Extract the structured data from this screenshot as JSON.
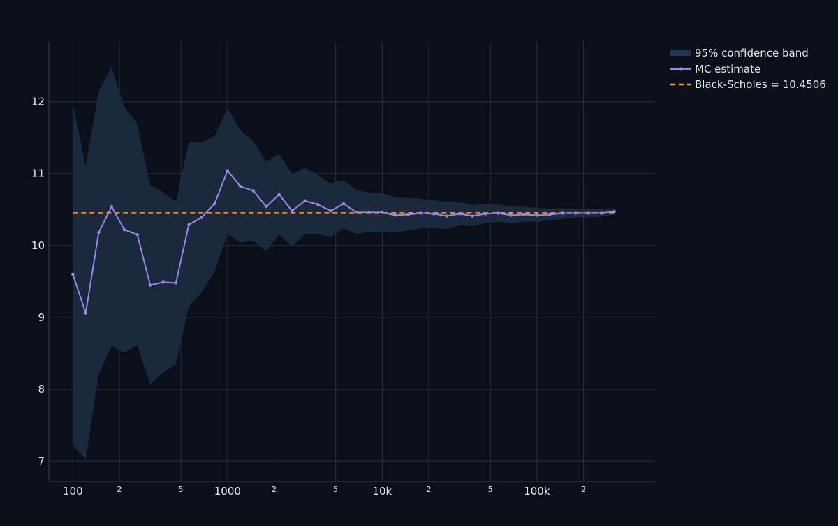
{
  "chart_data": {
    "type": "line",
    "title": "",
    "xlabel": "",
    "ylabel": "",
    "x_scale": "log",
    "xlim": [
      70,
      580000
    ],
    "ylim": [
      6.72,
      12.83
    ],
    "grid": true,
    "legend_position": "top-right",
    "colors": {
      "background": "#0b0f19",
      "grid": "#283042",
      "band": "#1c2b3e",
      "mc_line": "#9d86ea",
      "black_scholes": "#f0a04b",
      "tick_text": "#e6e6e6"
    },
    "x_ticks": [
      {
        "value": 100,
        "label": "100",
        "major": true
      },
      {
        "value": 200,
        "label": "2",
        "major": false
      },
      {
        "value": 500,
        "label": "5",
        "major": false
      },
      {
        "value": 1000,
        "label": "1000",
        "major": true
      },
      {
        "value": 2000,
        "label": "2",
        "major": false
      },
      {
        "value": 5000,
        "label": "5",
        "major": false
      },
      {
        "value": 10000,
        "label": "10k",
        "major": true
      },
      {
        "value": 20000,
        "label": "2",
        "major": false
      },
      {
        "value": 50000,
        "label": "5",
        "major": false
      },
      {
        "value": 100000,
        "label": "100k",
        "major": true
      },
      {
        "value": 200000,
        "label": "2",
        "major": false
      }
    ],
    "y_ticks": [
      7,
      8,
      9,
      10,
      11,
      12
    ],
    "x": [
      100,
      121,
      147,
      178,
      215,
      261,
      316,
      383,
      464,
      562,
      681,
      825,
      1000,
      1212,
      1468,
      1778,
      2154,
      2610,
      3162,
      3831,
      4642,
      5623,
      6813,
      8254,
      10000,
      12115,
      14678,
      17783,
      21544,
      26102,
      31623,
      38312,
      46416,
      56234,
      68129,
      82540,
      100000,
      121153,
      146780,
      177828,
      215443,
      261016,
      316228
    ],
    "series": [
      {
        "name": "MC estimate",
        "kind": "line+markers",
        "values": [
          9.6,
          9.06,
          10.18,
          10.54,
          10.22,
          10.15,
          9.45,
          9.49,
          9.48,
          10.29,
          10.39,
          10.58,
          11.04,
          10.82,
          10.76,
          10.54,
          10.71,
          10.48,
          10.62,
          10.57,
          10.48,
          10.58,
          10.46,
          10.46,
          10.46,
          10.42,
          10.43,
          10.45,
          10.44,
          10.41,
          10.44,
          10.41,
          10.44,
          10.45,
          10.42,
          10.43,
          10.42,
          10.43,
          10.45,
          10.45,
          10.45,
          10.45,
          10.47
        ]
      },
      {
        "name": "95% confidence band",
        "kind": "band",
        "upper": [
          11.98,
          11.1,
          12.15,
          12.48,
          11.93,
          11.69,
          10.84,
          10.74,
          10.61,
          11.44,
          11.43,
          11.52,
          11.91,
          11.6,
          11.45,
          11.16,
          11.27,
          10.99,
          11.08,
          10.98,
          10.86,
          10.91,
          10.77,
          10.73,
          10.73,
          10.67,
          10.66,
          10.65,
          10.63,
          10.6,
          10.6,
          10.56,
          10.58,
          10.57,
          10.54,
          10.54,
          10.52,
          10.51,
          10.52,
          10.51,
          10.51,
          10.5,
          10.51
        ],
        "lower": [
          7.22,
          7.03,
          8.21,
          8.6,
          8.51,
          8.61,
          8.07,
          8.23,
          8.35,
          9.15,
          9.35,
          9.64,
          10.16,
          10.04,
          10.07,
          9.92,
          10.15,
          9.98,
          10.16,
          10.16,
          10.11,
          10.24,
          10.16,
          10.19,
          10.19,
          10.18,
          10.21,
          10.24,
          10.24,
          10.23,
          10.28,
          10.27,
          10.31,
          10.33,
          10.31,
          10.33,
          10.33,
          10.35,
          10.37,
          10.39,
          10.39,
          10.4,
          10.43
        ]
      },
      {
        "name": "Black-Scholes = 10.4506",
        "kind": "reference",
        "value": 10.4506
      }
    ]
  }
}
